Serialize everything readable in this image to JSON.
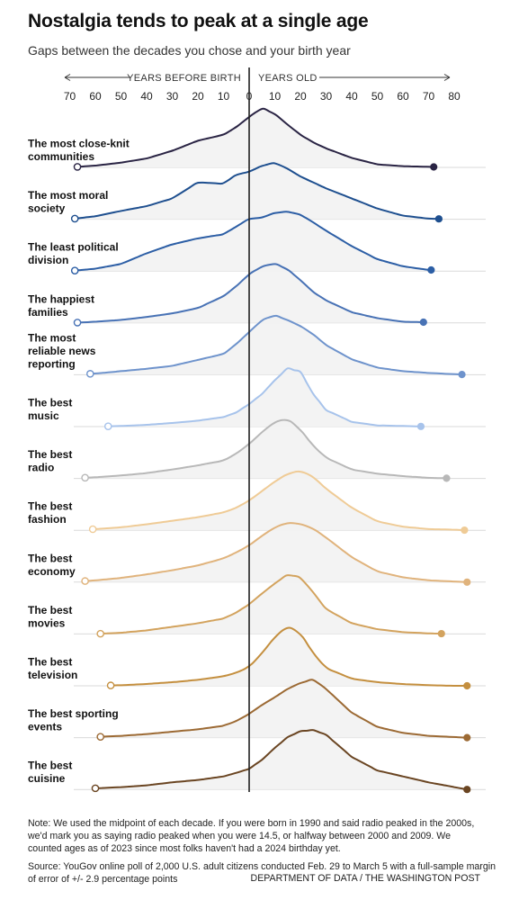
{
  "title": "Nostalgia tends to peak at a single age",
  "subtitle": "Gaps between the decades you chose and your birth year",
  "note": "Note: We used the midpoint of each decade. If you were born in 1990 and said radio peaked in the 2000s, we'd mark you as saying radio peaked when you were 14.5, or halfway between 2000 and 2009. We counted ages as of 2023 since most folks haven't had a 2024 birthday yet.",
  "source": "Source: YouGov online poll of 2,000 U.S. adult citizens conducted Feb. 29 to March 5 with a full-sample margin of error of +/- 2.9 percentage points",
  "credit": "DEPARTMENT OF DATA / THE WASHINGTON POST",
  "chart_data": {
    "type": "area",
    "axis": {
      "left_label": "YEARS BEFORE BIRTH",
      "right_label": "YEARS OLD",
      "ticks": [
        -70,
        -60,
        -50,
        -40,
        -30,
        -20,
        -10,
        0,
        10,
        20,
        30,
        40,
        50,
        60,
        70,
        80
      ],
      "tick_labels": [
        "70",
        "60",
        "50",
        "40",
        "30",
        "20",
        "10",
        "0",
        "10",
        "20",
        "30",
        "40",
        "50",
        "60",
        "70",
        "80"
      ],
      "xlim": [
        -70,
        80
      ]
    },
    "x": [
      -70,
      -60,
      -50,
      -40,
      -30,
      -20,
      -10,
      -5,
      0,
      5,
      10,
      15,
      20,
      25,
      30,
      40,
      50,
      60,
      70,
      80,
      85
    ],
    "series": [
      {
        "name": "The most close-knit\ncommunities",
        "color": "#2a2444",
        "min": -67,
        "max": 72,
        "values": [
          0,
          0.03,
          0.08,
          0.15,
          0.28,
          0.45,
          0.55,
          0.68,
          0.85,
          1.0,
          0.9,
          0.72,
          0.55,
          0.42,
          0.32,
          0.16,
          0.05,
          0.02,
          0.01,
          0,
          0
        ]
      },
      {
        "name": "The most moral\nsociety",
        "color": "#1e4f8f",
        "min": -68,
        "max": 74,
        "values": [
          0,
          0.05,
          0.14,
          0.22,
          0.35,
          0.62,
          0.6,
          0.75,
          0.8,
          0.9,
          0.95,
          0.85,
          0.72,
          0.62,
          0.52,
          0.35,
          0.18,
          0.06,
          0.01,
          0,
          0
        ]
      },
      {
        "name": "The least political\ndivision",
        "color": "#2c5ea5",
        "min": -68,
        "max": 71,
        "values": [
          0,
          0.04,
          0.12,
          0.3,
          0.45,
          0.55,
          0.62,
          0.75,
          0.88,
          0.9,
          0.98,
          1.0,
          0.95,
          0.82,
          0.68,
          0.42,
          0.2,
          0.08,
          0.02,
          0,
          0
        ]
      },
      {
        "name": "The happiest\nfamilies",
        "color": "#4872b5",
        "min": -67,
        "max": 68,
        "values": [
          0,
          0.02,
          0.05,
          0.1,
          0.16,
          0.25,
          0.45,
          0.62,
          0.82,
          0.95,
          1.0,
          0.9,
          0.72,
          0.52,
          0.38,
          0.18,
          0.08,
          0.02,
          0.01,
          0,
          0
        ]
      },
      {
        "name": "The most\nreliable news\nreporting",
        "color": "#6e93cc",
        "min": -62,
        "max": 83,
        "values": [
          0,
          0.02,
          0.06,
          0.1,
          0.15,
          0.25,
          0.35,
          0.52,
          0.72,
          0.92,
          1.0,
          0.92,
          0.82,
          0.68,
          0.5,
          0.26,
          0.12,
          0.06,
          0.03,
          0.01,
          0
        ]
      },
      {
        "name": "The best\nmusic",
        "color": "#a7c3eb",
        "min": -55,
        "max": 67,
        "values": [
          0,
          0,
          0.01,
          0.03,
          0.06,
          0.1,
          0.16,
          0.24,
          0.38,
          0.55,
          0.78,
          0.98,
          0.92,
          0.55,
          0.28,
          0.08,
          0.02,
          0.01,
          0,
          0,
          0
        ]
      },
      {
        "name": "The best\nradio",
        "color": "#b8b8b8",
        "min": -64,
        "max": 77,
        "values": [
          0,
          0.02,
          0.05,
          0.09,
          0.15,
          0.22,
          0.3,
          0.42,
          0.58,
          0.78,
          0.95,
          1.0,
          0.82,
          0.55,
          0.35,
          0.15,
          0.08,
          0.04,
          0.01,
          0,
          0
        ]
      },
      {
        "name": "The best\nfashion",
        "color": "#efcb96",
        "min": -61,
        "max": 84,
        "values": [
          0,
          0.02,
          0.05,
          0.1,
          0.16,
          0.22,
          0.3,
          0.38,
          0.5,
          0.66,
          0.82,
          0.95,
          1.0,
          0.9,
          0.7,
          0.38,
          0.15,
          0.06,
          0.02,
          0.01,
          0
        ]
      },
      {
        "name": "The best\neconomy",
        "color": "#e0b37c",
        "min": -64,
        "max": 85,
        "values": [
          0,
          0.03,
          0.07,
          0.13,
          0.2,
          0.28,
          0.4,
          0.5,
          0.62,
          0.78,
          0.92,
          1.0,
          0.98,
          0.9,
          0.75,
          0.42,
          0.18,
          0.08,
          0.03,
          0.01,
          0
        ]
      },
      {
        "name": "The best\nmovies",
        "color": "#d3a35e",
        "min": -58,
        "max": 75,
        "values": [
          0,
          0,
          0.02,
          0.06,
          0.12,
          0.18,
          0.26,
          0.36,
          0.5,
          0.68,
          0.85,
          1.0,
          0.95,
          0.7,
          0.42,
          0.18,
          0.08,
          0.03,
          0.01,
          0,
          0
        ]
      },
      {
        "name": "The best\ntelevision",
        "color": "#c48f3f",
        "min": -54,
        "max": 85,
        "values": [
          0,
          0,
          0.01,
          0.03,
          0.06,
          0.1,
          0.16,
          0.22,
          0.32,
          0.55,
          0.82,
          1.0,
          0.88,
          0.55,
          0.3,
          0.12,
          0.06,
          0.03,
          0.01,
          0,
          0
        ]
      },
      {
        "name": "The best sporting\nevents",
        "color": "#9c6a34",
        "min": -58,
        "max": 85,
        "values": [
          0,
          0.01,
          0.03,
          0.06,
          0.1,
          0.14,
          0.2,
          0.28,
          0.4,
          0.55,
          0.68,
          0.82,
          0.92,
          0.98,
          0.82,
          0.42,
          0.18,
          0.08,
          0.03,
          0.01,
          0
        ]
      },
      {
        "name": "The best\ncuisine",
        "color": "#6a4522",
        "min": -60,
        "max": 85,
        "values": [
          0,
          0.02,
          0.04,
          0.07,
          0.12,
          0.16,
          0.22,
          0.28,
          0.35,
          0.5,
          0.7,
          0.88,
          0.98,
          1.0,
          0.92,
          0.55,
          0.32,
          0.22,
          0.12,
          0.04,
          0
        ]
      }
    ]
  }
}
